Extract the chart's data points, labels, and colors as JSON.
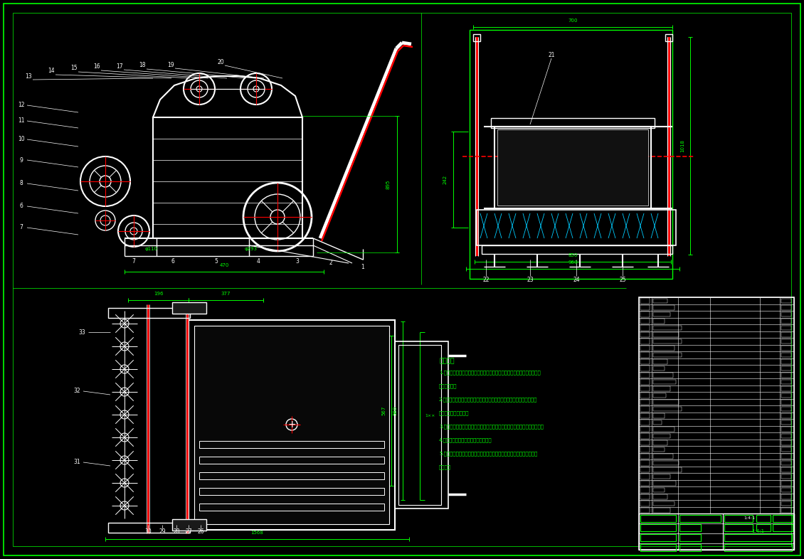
{
  "bg_color": "#000000",
  "white": "#FFFFFF",
  "green": "#00FF00",
  "red": "#FF0000",
  "cyan": "#00CCFF",
  "figsize": [
    11.3,
    7.86
  ],
  "dpi": 100,
  "notes_title": "技术要求",
  "note1": "1.组装前应对所有零件（包括购买件、外协件），均匀喘涂符合国标的防锈",
  "note1b": "方法后组装。",
  "note2": "2.整机组装完毕的毛块件，不得有毛刺、飞边、凹凸、划伤、锈蚀、明显",
  "note2b": "缺陷，整机防锈涂之。",
  "note3": "3.安装前仔细阅读：检查各种配合尺寸，执行对超差的零件不得用强行装配，",
  "note4": "4.本机力争不对号不互换，轻装轻放。",
  "note5": "5.总对．总拆和总日备用中，严禁在少使用不合格的刀片和刷子，备用。",
  "note5b": "总日和。"
}
